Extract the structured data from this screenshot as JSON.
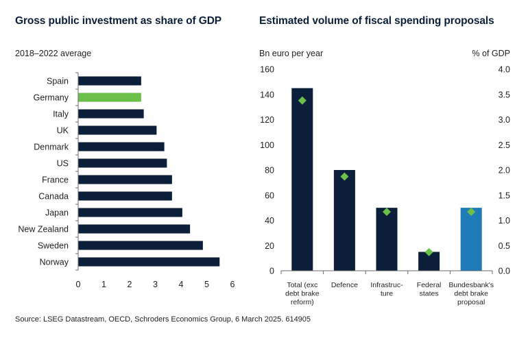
{
  "colors": {
    "navy": "#0b1f3a",
    "green": "#6cc04a",
    "blue": "#1f7ab8",
    "axis": "#6b6b6b"
  },
  "chart_data": [
    {
      "type": "bar",
      "orientation": "horizontal",
      "title": "Gross public investment as share of GDP",
      "subtitle": "2018–2022 average",
      "categories": [
        "Spain",
        "Germany",
        "Italy",
        "UK",
        "Denmark",
        "US",
        "France",
        "Canada",
        "Japan",
        "New Zealand",
        "Sweden",
        "Norway"
      ],
      "values": [
        2.45,
        2.45,
        2.55,
        3.05,
        3.35,
        3.45,
        3.65,
        3.65,
        4.05,
        4.35,
        4.85,
        5.5
      ],
      "highlight": "Germany",
      "xlim": [
        0,
        6
      ],
      "xticks": [
        "0",
        "1",
        "2",
        "3",
        "4",
        "5",
        "6"
      ],
      "xlabel": "",
      "ylabel": ""
    },
    {
      "type": "bar",
      "title": "Estimated volume of fiscal spending proposals",
      "ylabel": "Bn euro per year",
      "y2label": "% of GDP",
      "categories": [
        [
          "Total (exc",
          "debt brake",
          "reform)"
        ],
        [
          "Defence"
        ],
        [
          "Infrastruc-",
          "ture"
        ],
        [
          "Federal",
          "states"
        ],
        [
          "Bundesbank's",
          "debt brake",
          "proposal"
        ]
      ],
      "series": [
        {
          "name": "Bn euro per year",
          "values": [
            145,
            80,
            50,
            15,
            50
          ]
        },
        {
          "name": "% of GDP",
          "marker": "diamond",
          "axis": "right",
          "values": [
            3.38,
            1.87,
            1.17,
            0.37,
            1.17
          ]
        }
      ],
      "highlight_index": 4,
      "ylim": [
        0,
        160
      ],
      "y2lim": [
        0,
        4
      ],
      "yticks": [
        "0",
        "20",
        "40",
        "60",
        "80",
        "100",
        "120",
        "140",
        "160"
      ],
      "y2ticks": [
        "0.0",
        "0.5",
        "1.0",
        "1.5",
        "2.0",
        "2.5",
        "3.0",
        "3.5",
        "4.0"
      ]
    }
  ],
  "source": "Source: LSEG Datastream, OECD, Schroders Economics Group, 6 March 2025. 614905"
}
